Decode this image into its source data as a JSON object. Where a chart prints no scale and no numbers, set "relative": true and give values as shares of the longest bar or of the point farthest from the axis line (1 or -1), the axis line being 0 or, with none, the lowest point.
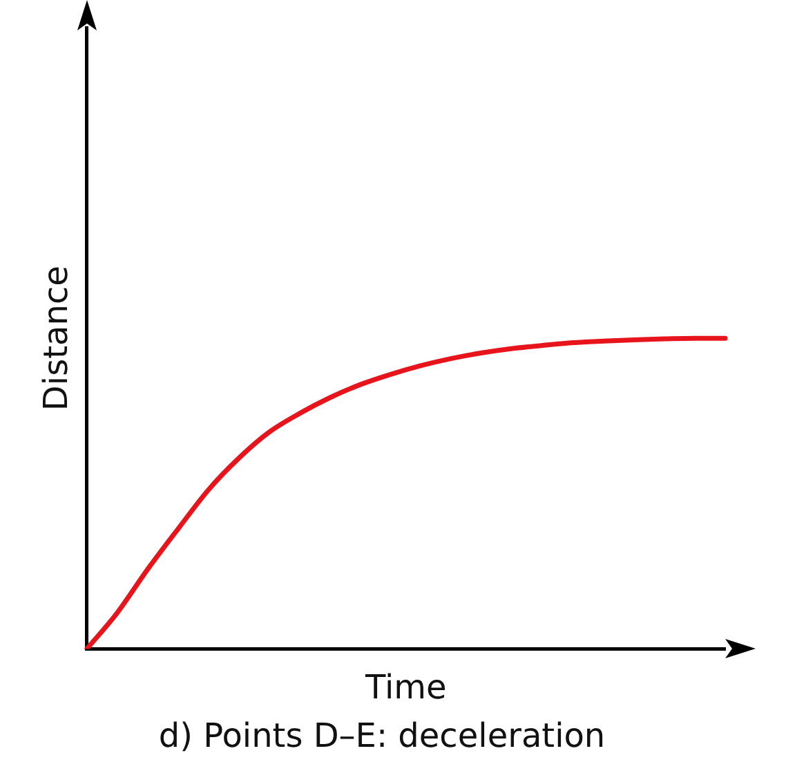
{
  "chart_data": {
    "type": "line",
    "title": "d) Points D–E: deceleration",
    "xlabel": "Time",
    "ylabel": "Distance",
    "relative": true,
    "categories": [
      null,
      null,
      null,
      null,
      null,
      null,
      null,
      null,
      null,
      null,
      null,
      null,
      null,
      null,
      null,
      null,
      null,
      null,
      null,
      null,
      null,
      null
    ],
    "series": [
      {
        "color": "#e8141c",
        "values": [
          0,
          0.116,
          0.256,
          0.386,
          0.512,
          0.614,
          0.698,
          0.758,
          0.809,
          0.851,
          0.884,
          0.912,
          0.935,
          0.953,
          0.967,
          0.977,
          0.986,
          0.991,
          0.995,
          0.998,
          1,
          1
        ]
      }
    ]
  }
}
